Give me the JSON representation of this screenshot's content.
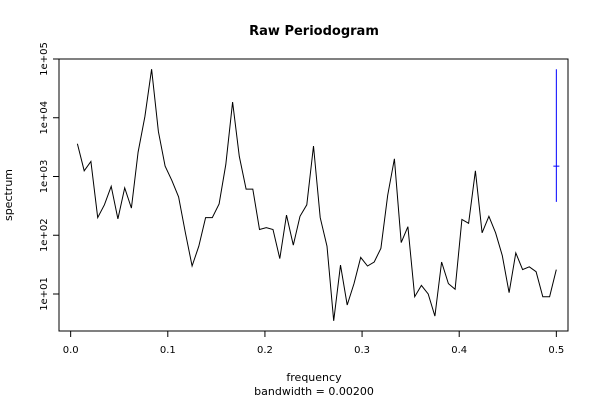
{
  "chart_data": {
    "type": "line",
    "title": "Raw Periodogram",
    "xlabel": "frequency",
    "ylabel": "spectrum",
    "subtitle": "bandwidth = 0.00200",
    "xlim": [
      -0.012,
      0.512
    ],
    "ylim_log10": [
      0.37,
      5.0
    ],
    "y_scale": "log",
    "grid": false,
    "x_ticks": [
      {
        "value": 0.0,
        "label": "0.0"
      },
      {
        "value": 0.1,
        "label": "0.1"
      },
      {
        "value": 0.2,
        "label": "0.2"
      },
      {
        "value": 0.3,
        "label": "0.3"
      },
      {
        "value": 0.4,
        "label": "0.4"
      },
      {
        "value": 0.5,
        "label": "0.5"
      }
    ],
    "y_ticks": [
      {
        "value": 10,
        "label": "1e+01"
      },
      {
        "value": 100,
        "label": "1e+02"
      },
      {
        "value": 1000,
        "label": "1e+03"
      },
      {
        "value": 10000,
        "label": "1e+04"
      },
      {
        "value": 100000,
        "label": "1e+05"
      }
    ],
    "series": [
      {
        "color": "#000000",
        "x": [
          0.0069,
          0.0139,
          0.0208,
          0.0278,
          0.0347,
          0.0417,
          0.0486,
          0.0556,
          0.0625,
          0.0694,
          0.0764,
          0.0833,
          0.0903,
          0.0972,
          0.1042,
          0.1111,
          0.1181,
          0.125,
          0.1319,
          0.1389,
          0.1458,
          0.1528,
          0.1597,
          0.1667,
          0.1736,
          0.1806,
          0.1875,
          0.1944,
          0.2014,
          0.2083,
          0.2153,
          0.2222,
          0.2292,
          0.2361,
          0.2431,
          0.25,
          0.2569,
          0.2639,
          0.2708,
          0.2778,
          0.2847,
          0.2917,
          0.2986,
          0.3056,
          0.3125,
          0.3194,
          0.3264,
          0.3333,
          0.3403,
          0.3472,
          0.3542,
          0.3611,
          0.3681,
          0.375,
          0.3819,
          0.3889,
          0.3958,
          0.4028,
          0.4097,
          0.4167,
          0.4236,
          0.4306,
          0.4375,
          0.4444,
          0.4514,
          0.4583,
          0.4653,
          0.4722,
          0.4792,
          0.4861,
          0.4931,
          0.5
        ],
        "y": [
          3600,
          1250,
          1800,
          200,
          330,
          680,
          190,
          640,
          290,
          2600,
          10500,
          67000,
          5800,
          1500,
          850,
          450,
          110,
          30,
          65,
          200,
          200,
          340,
          1600,
          18500,
          2200,
          610,
          610,
          125,
          135,
          125,
          40,
          220,
          68,
          210,
          330,
          3300,
          200,
          65,
          3.5,
          31,
          6.5,
          15,
          42,
          30,
          35,
          60,
          480,
          2000,
          75,
          140,
          9,
          14,
          10,
          4.2,
          35,
          15,
          12,
          185,
          160,
          1250,
          110,
          210,
          110,
          45,
          10.5,
          50,
          26,
          29,
          24,
          9,
          9,
          26
        ]
      }
    ],
    "error_bar": {
      "color": "#0000ff",
      "x": 0.5,
      "center": 1500,
      "low": 370,
      "high": 67000
    }
  }
}
